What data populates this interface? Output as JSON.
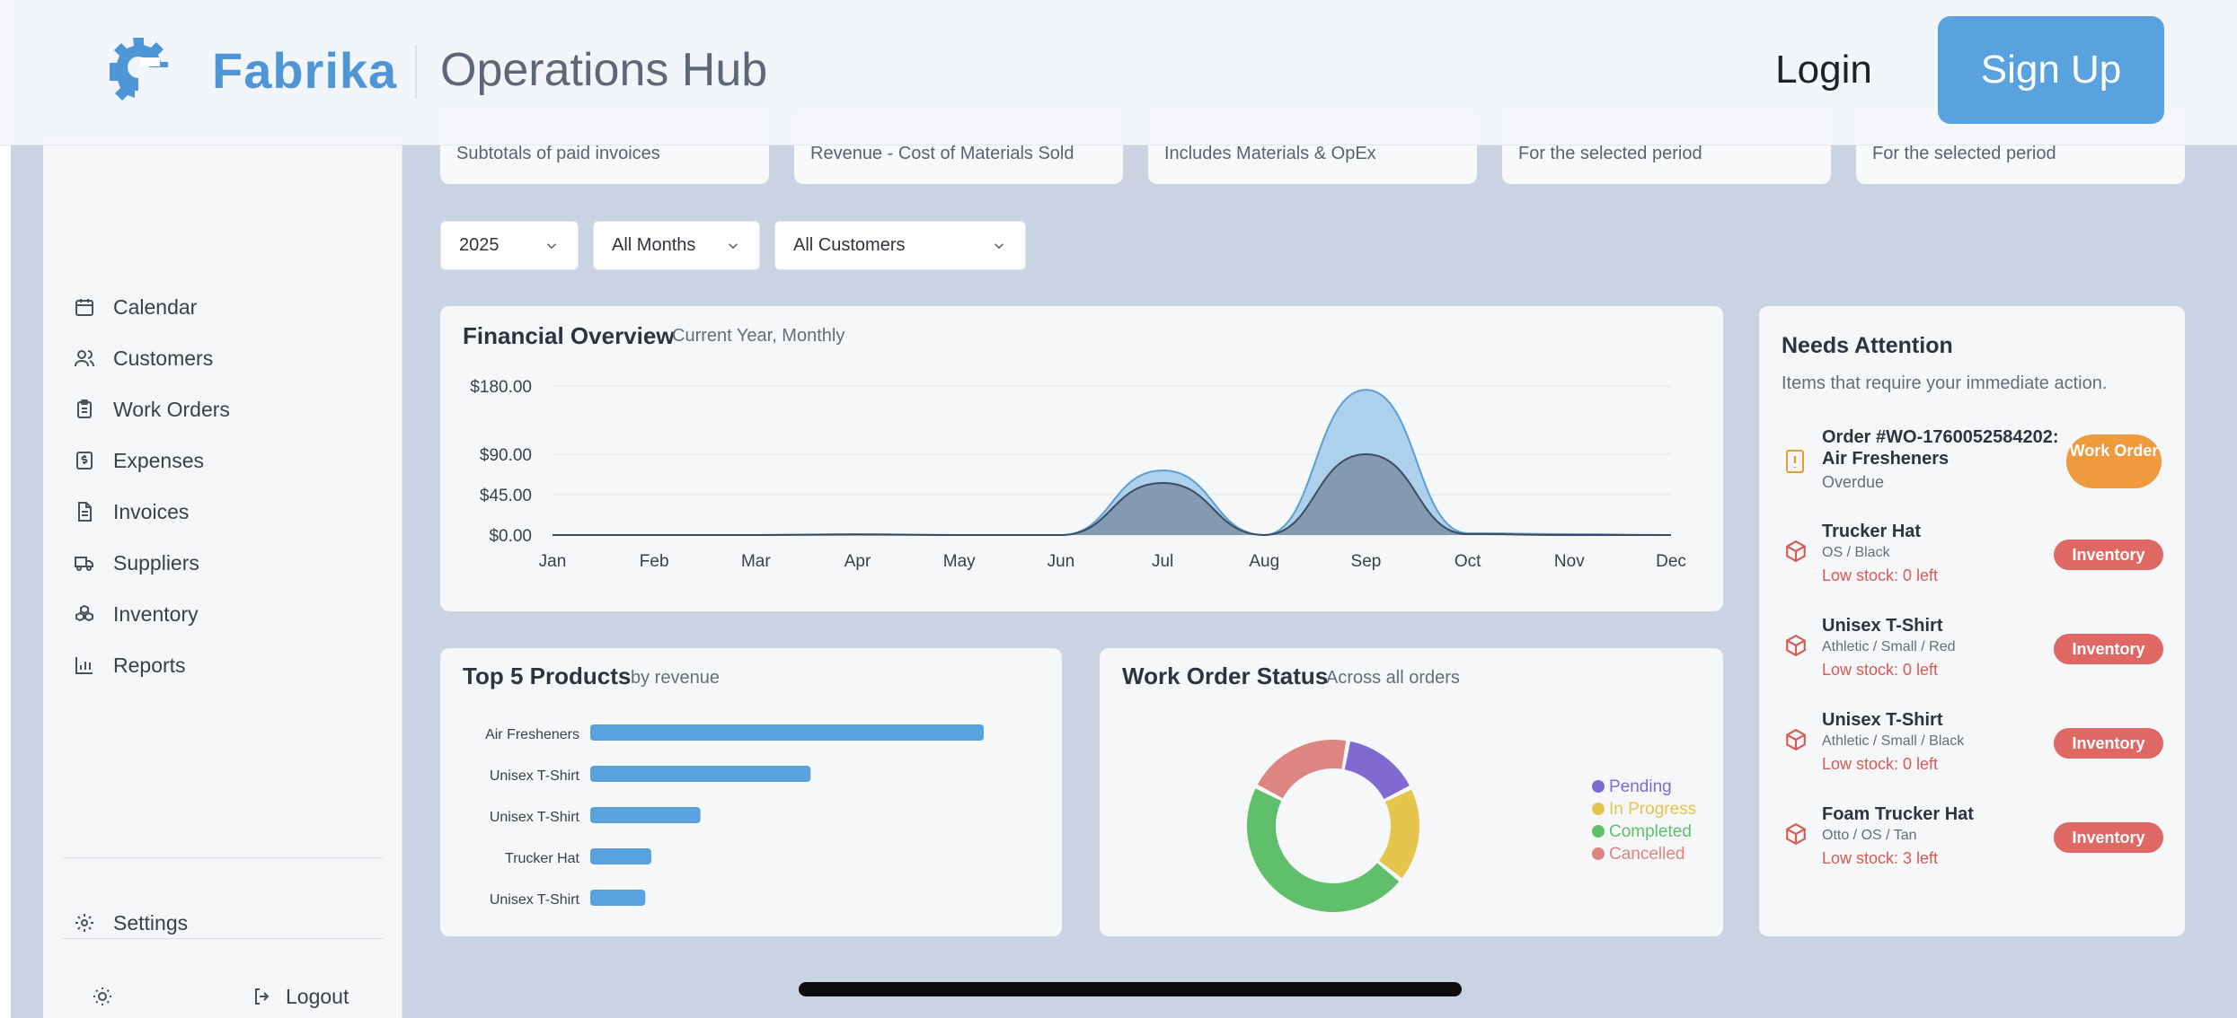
{
  "header": {
    "brand": "Fabrika",
    "title": "Operations Hub",
    "login_label": "Login",
    "signup_label": "Sign Up"
  },
  "sidebar": {
    "items": [
      {
        "label": "Calendar",
        "icon": "calendar-icon"
      },
      {
        "label": "Customers",
        "icon": "users-icon"
      },
      {
        "label": "Work Orders",
        "icon": "clipboard-icon"
      },
      {
        "label": "Expenses",
        "icon": "dollar-receipt-icon"
      },
      {
        "label": "Invoices",
        "icon": "file-text-icon"
      },
      {
        "label": "Suppliers",
        "icon": "truck-icon"
      },
      {
        "label": "Inventory",
        "icon": "boxes-icon"
      },
      {
        "label": "Reports",
        "icon": "bar-chart-icon"
      }
    ],
    "settings_label": "Settings",
    "logout_label": "Logout"
  },
  "kpis": [
    {
      "sub": "Subtotals of paid invoices"
    },
    {
      "sub": "Revenue - Cost of Materials Sold"
    },
    {
      "sub": "Includes Materials & OpEx"
    },
    {
      "sub": "For the selected period"
    },
    {
      "sub": "For the selected period"
    }
  ],
  "filters": {
    "year": "2025",
    "month": "All Months",
    "customer": "All Customers"
  },
  "financial": {
    "title": "Financial Overview",
    "subtitle": "Current Year, Monthly"
  },
  "top_products": {
    "title": "Top 5 Products",
    "subtitle": "by revenue"
  },
  "work_order_status": {
    "title": "Work Order Status",
    "subtitle": "Across all orders"
  },
  "attention": {
    "title": "Needs Attention",
    "subtitle": "Items that require your immediate action.",
    "items": [
      {
        "name": "Order #WO-1760052584202:",
        "name2": "Air Fresheners",
        "detail": "Overdue",
        "alert": "",
        "badge": "Work Order",
        "badge_color": "#ef9a3c"
      },
      {
        "name": "Trucker Hat",
        "name2": "",
        "detail": "OS / Black",
        "alert": "Low stock: 0 left",
        "badge": "Inventory",
        "badge_color": "#df6865"
      },
      {
        "name": "Unisex T-Shirt",
        "name2": "",
        "detail": "Athletic / Small / Red",
        "alert": "Low stock: 0 left",
        "badge": "Inventory",
        "badge_color": "#df6865"
      },
      {
        "name": "Unisex T-Shirt",
        "name2": "",
        "detail": "Athletic / Small / Black",
        "alert": "Low stock: 0 left",
        "badge": "Inventory",
        "badge_color": "#df6865"
      },
      {
        "name": "Foam Trucker Hat",
        "name2": "",
        "detail": "Otto / OS / Tan",
        "alert": "Low stock: 3 left",
        "badge": "Inventory",
        "badge_color": "#df6865"
      }
    ]
  },
  "colors": {
    "brand": "#4f96d8",
    "revenue_area": "#a9cdeb",
    "cost_area": "#7f93ab",
    "bar": "#5aa2df"
  },
  "chart_data": [
    {
      "type": "area",
      "x": [
        "Jan",
        "Feb",
        "Mar",
        "Apr",
        "May",
        "Jun",
        "Jul",
        "Aug",
        "Sep",
        "Oct",
        "Nov",
        "Dec"
      ],
      "y_ticks": [
        "$180.00",
        "$90.00",
        "$45.00",
        "$0.00"
      ],
      "ylim": [
        0,
        180
      ],
      "y_scale": "symlog",
      "series": [
        {
          "values": [
            0,
            0,
            0,
            1,
            0,
            0,
            72,
            0,
            175,
            2,
            1,
            0
          ]
        },
        {
          "values": [
            0,
            0,
            0,
            0.5,
            0,
            0,
            58,
            0,
            90,
            1,
            0,
            0
          ]
        }
      ],
      "grid": true
    },
    {
      "type": "bar",
      "orientation": "horizontal",
      "categories": [
        "Air Fresheners",
        "Unisex T-Shirt",
        "Unisex T-Shirt",
        "Trucker Hat",
        "Unisex T-Shirt"
      ],
      "values": [
        100,
        56,
        28,
        15.5,
        14
      ]
    },
    {
      "type": "pie",
      "donut": true,
      "labels": [
        "Pending",
        "In Progress",
        "Completed",
        "Cancelled"
      ],
      "values": [
        14,
        17,
        44,
        19
      ],
      "colors": [
        "#7e6ad0",
        "#e6c54e",
        "#5fbf6a",
        "#dc8583"
      ],
      "legend": "right"
    }
  ]
}
